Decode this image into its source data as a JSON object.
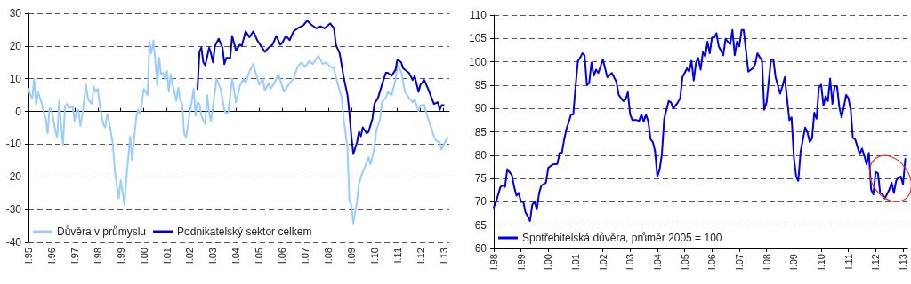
{
  "chart_data": [
    {
      "type": "line",
      "xlim": [
        "1995-01",
        "2013-04"
      ],
      "ylim": [
        -40,
        30
      ],
      "yticks": [
        -40,
        -30,
        -20,
        -10,
        0,
        10,
        20,
        30
      ],
      "xticks": [
        {
          "value": "1995-01",
          "label": "I.95"
        },
        {
          "value": "1996-01",
          "label": "I.96"
        },
        {
          "value": "1997-01",
          "label": "I.97"
        },
        {
          "value": "1998-01",
          "label": "I.98"
        },
        {
          "value": "1999-01",
          "label": "I.99"
        },
        {
          "value": "2000-01",
          "label": "I.00"
        },
        {
          "value": "2001-01",
          "label": "I.01"
        },
        {
          "value": "2002-01",
          "label": "I.02"
        },
        {
          "value": "2003-01",
          "label": "I.03"
        },
        {
          "value": "2004-01",
          "label": "I.04"
        },
        {
          "value": "2005-01",
          "label": "I.05"
        },
        {
          "value": "2006-01",
          "label": "I.06"
        },
        {
          "value": "2007-01",
          "label": "I.07"
        },
        {
          "value": "2008-01",
          "label": "I.08"
        },
        {
          "value": "2009-01",
          "label": "I.09"
        },
        {
          "value": "2010-01",
          "label": "I.10"
        },
        {
          "value": "2011-01",
          "label": "I.11"
        },
        {
          "value": "2012-01",
          "label": "I.12"
        },
        {
          "value": "2013-01",
          "label": "I.13"
        }
      ],
      "grid": "y",
      "legend": "bottom left",
      "line_style": "solid",
      "marker": "none",
      "series": [
        {
          "name": "Důvěra v průmyslu",
          "color": "#99ccff",
          "x": [
            "1995-01",
            "1995-02",
            "1995-03",
            "1995-04",
            "1995-05",
            "1995-06",
            "1995-08",
            "1995-09",
            "1995-10",
            "1995-11",
            "1995-12",
            "1996-01",
            "1996-03",
            "1996-04",
            "1996-05",
            "1996-06",
            "1996-07",
            "1996-08",
            "1996-09",
            "1996-10",
            "1996-12",
            "1997-01",
            "1997-02",
            "1997-03",
            "1997-04",
            "1997-05",
            "1997-07",
            "1997-08",
            "1997-10",
            "1997-11",
            "1997-12",
            "1998-01",
            "1998-02",
            "1998-04",
            "1998-05",
            "1998-06",
            "1998-07",
            "1998-09",
            "1998-10",
            "1998-12",
            "1999-01",
            "1999-02",
            "1999-03",
            "1999-04",
            "1999-05",
            "1999-06",
            "1999-07",
            "1999-09",
            "1999-10",
            "1999-11",
            "1999-12",
            "2000-01",
            "2000-03",
            "2000-04",
            "2000-05",
            "2000-06",
            "2000-07",
            "2000-08",
            "2000-09",
            "2000-10",
            "2000-11",
            "2000-12",
            "2001-01",
            "2001-02",
            "2001-03",
            "2001-04",
            "2001-06",
            "2001-07",
            "2001-08",
            "2001-09",
            "2001-10",
            "2001-11",
            "2002-01",
            "2002-02",
            "2002-03",
            "2002-04",
            "2002-05",
            "2002-06",
            "2002-07",
            "2002-09",
            "2002-10",
            "2002-11",
            "2002-12",
            "2003-02",
            "2003-03",
            "2003-05",
            "2003-07",
            "2003-08",
            "2003-09",
            "2003-11",
            "2004-01",
            "2004-03",
            "2004-05",
            "2004-06",
            "2004-08",
            "2004-10",
            "2004-11",
            "2005-01",
            "2005-03",
            "2005-04",
            "2005-06",
            "2005-07",
            "2005-09",
            "2005-11",
            "2006-01",
            "2006-02",
            "2006-05",
            "2006-07",
            "2006-09",
            "2006-11",
            "2007-01",
            "2007-03",
            "2007-05",
            "2007-08",
            "2007-10",
            "2007-12",
            "2008-02",
            "2008-04",
            "2008-05",
            "2008-08",
            "2008-09",
            "2008-11",
            "2008-12",
            "2009-01",
            "2009-02",
            "2009-04",
            "2009-05",
            "2009-07",
            "2009-08",
            "2009-10",
            "2009-11",
            "2010-01",
            "2010-02",
            "2010-04",
            "2010-05",
            "2010-07",
            "2010-08",
            "2010-10",
            "2010-12",
            "2011-01",
            "2011-03",
            "2011-05",
            "2011-07",
            "2011-09",
            "2011-10",
            "2011-12",
            "2012-01",
            "2012-03",
            "2012-04",
            "2012-06",
            "2012-08",
            "2012-09",
            "2012-11",
            "2012-12",
            "2013-01",
            "2013-03"
          ],
          "values": [
            6.9,
            5,
            4,
            10,
            2,
            6,
            2.3,
            -0.4,
            -2,
            -6.7,
            1,
            0.5,
            -5.8,
            -8,
            3.3,
            -4,
            -10.3,
            1.5,
            2.3,
            1,
            1.5,
            -3,
            0.5,
            0.4,
            -4.4,
            -1.3,
            8.2,
            3.7,
            2.3,
            7.7,
            6,
            6.9,
            2.3,
            -4,
            -4.9,
            -0.8,
            -3,
            -10.3,
            -18.4,
            -26.6,
            -21,
            -24.8,
            -28.4,
            -20.3,
            -13.9,
            -7.6,
            -14.8,
            -2.2,
            0.5,
            -0.8,
            2.3,
            6.9,
            5,
            21.3,
            17.7,
            21.7,
            15.9,
            7.8,
            16.4,
            11.4,
            11.8,
            10,
            12.3,
            6,
            11.4,
            8.2,
            3.3,
            7.3,
            3.3,
            2.3,
            -6.7,
            -8,
            -0.4,
            3.3,
            6.9,
            -1.3,
            2.8,
            2.3,
            -1.3,
            -4,
            5,
            -0.4,
            -3,
            6,
            10,
            6.9,
            0.5,
            -0.8,
            -0.2,
            10,
            2.8,
            7.8,
            10,
            8.7,
            12.3,
            14.5,
            12.3,
            8.2,
            10,
            6.4,
            8.7,
            6.9,
            8.7,
            11.4,
            7.8,
            6,
            8.7,
            10,
            13.6,
            15,
            13.6,
            15.4,
            14.5,
            17,
            14.5,
            15,
            13.6,
            13.2,
            10.5,
            4.2,
            -2.2,
            -11.2,
            -27.5,
            -28.4,
            -34.2,
            -27.5,
            -22,
            -18.4,
            -17.1,
            -13.9,
            -16.2,
            -11.2,
            -5.8,
            -2.2,
            2.8,
            4.2,
            6,
            5,
            9.6,
            14.1,
            12.3,
            6,
            4.2,
            2.8,
            3.7,
            0.1,
            1.9,
            1.9,
            -0.4,
            -4,
            -7.6,
            -8.9,
            -9.4,
            -11.7,
            -10.3,
            -8
          ]
        },
        {
          "name": "Podnikatelský sektor celkem",
          "color": "#0000cc",
          "x": [
            "2002-05",
            "2002-06",
            "2002-07",
            "2002-08",
            "2002-09",
            "2002-11",
            "2002-12",
            "2003-01",
            "2003-02",
            "2003-04",
            "2003-06",
            "2003-07",
            "2003-08",
            "2003-10",
            "2003-11",
            "2004-01",
            "2004-03",
            "2004-04",
            "2004-05",
            "2004-06",
            "2004-08",
            "2004-10",
            "2004-12",
            "2005-02",
            "2005-04",
            "2005-06",
            "2005-08",
            "2005-10",
            "2005-12",
            "2006-01",
            "2006-03",
            "2006-05",
            "2006-07",
            "2006-09",
            "2006-12",
            "2007-02",
            "2007-04",
            "2007-07",
            "2007-09",
            "2007-11",
            "2008-02",
            "2008-04",
            "2008-05",
            "2008-07",
            "2008-09",
            "2008-11",
            "2008-12",
            "2009-01",
            "2009-02",
            "2009-04",
            "2009-05",
            "2009-06",
            "2009-07",
            "2009-09",
            "2009-10",
            "2009-12",
            "2010-01",
            "2010-03",
            "2010-05",
            "2010-07",
            "2010-08",
            "2010-10",
            "2010-12",
            "2011-01",
            "2011-03",
            "2011-04",
            "2011-07",
            "2011-09",
            "2011-10",
            "2011-12",
            "2012-01",
            "2012-03",
            "2012-05",
            "2012-08",
            "2012-10",
            "2012-11",
            "2012-12",
            "2013-01"
          ],
          "values": [
            6.9,
            18.2,
            19.5,
            15,
            14.1,
            19.5,
            17.7,
            15,
            20,
            22.2,
            19.5,
            14.5,
            16.4,
            16.4,
            23.1,
            18.6,
            20.4,
            20,
            22.2,
            24.5,
            22.7,
            24.5,
            21.8,
            20,
            18.2,
            19.5,
            20.4,
            23.1,
            20.4,
            20.9,
            23.1,
            21.8,
            24.5,
            25.4,
            26.3,
            27.8,
            26.6,
            25.4,
            26,
            25.4,
            26.9,
            25.4,
            20.4,
            17.7,
            10.5,
            5,
            -0.4,
            -7.6,
            -13,
            -9.4,
            -6.2,
            -7.6,
            -4.9,
            -6.7,
            -6.2,
            -2.2,
            2.3,
            4.2,
            8.2,
            11.8,
            11.8,
            10.9,
            12.7,
            15.9,
            15,
            13.2,
            11.8,
            9.6,
            10.9,
            6,
            8.2,
            9.6,
            6.9,
            2.3,
            2.8,
            0.5,
            1.9,
            1.9
          ]
        }
      ]
    },
    {
      "type": "line",
      "xlim": [
        "1998-01",
        "2013-03"
      ],
      "ylim": [
        60,
        110
      ],
      "yticks": [
        60,
        65,
        70,
        75,
        80,
        85,
        90,
        95,
        100,
        105,
        110
      ],
      "xticks": [
        {
          "value": "1998-01",
          "label": "I.98"
        },
        {
          "value": "1999-01",
          "label": "I.99"
        },
        {
          "value": "2000-01",
          "label": "I.00"
        },
        {
          "value": "2001-01",
          "label": "I.01"
        },
        {
          "value": "2002-01",
          "label": "I.02"
        },
        {
          "value": "2003-01",
          "label": "I.03"
        },
        {
          "value": "2004-01",
          "label": "I.04"
        },
        {
          "value": "2005-01",
          "label": "I.05"
        },
        {
          "value": "2006-01",
          "label": "I.06"
        },
        {
          "value": "2007-01",
          "label": "I.07"
        },
        {
          "value": "2008-01",
          "label": "I.08"
        },
        {
          "value": "2009-01",
          "label": "I.09"
        },
        {
          "value": "2010-01",
          "label": "I.10"
        },
        {
          "value": "2011-01",
          "label": "I.11"
        },
        {
          "value": "2012-01",
          "label": "I.12"
        },
        {
          "value": "2013-01",
          "label": "I.13"
        }
      ],
      "grid": "y",
      "legend": "bottom left",
      "line_style": "solid",
      "marker": "none",
      "series": [
        {
          "name": "Spotřebitelská důvěra, průměr 2005 = 100",
          "color": "#0000ee",
          "x": [
            "1998-01",
            "1998-02",
            "1998-04",
            "1998-05",
            "1998-06",
            "1998-07",
            "1998-09",
            "1998-10",
            "1998-11",
            "1998-12",
            "1999-01",
            "1999-02",
            "1999-03",
            "1999-04",
            "1999-05",
            "1999-06",
            "1999-07",
            "1999-08",
            "1999-09",
            "1999-10",
            "1999-12",
            "2000-01",
            "2000-03",
            "2000-05",
            "2000-06",
            "2000-07",
            "2000-08",
            "2000-09",
            "2000-11",
            "2000-12",
            "2001-01",
            "2001-02",
            "2001-03",
            "2001-04",
            "2001-05",
            "2001-06",
            "2001-07",
            "2001-08",
            "2001-09",
            "2001-10",
            "2001-11",
            "2002-01",
            "2002-03",
            "2002-05",
            "2002-07",
            "2002-08",
            "2002-10",
            "2002-11",
            "2002-12",
            "2003-01",
            "2003-02",
            "2003-04",
            "2003-05",
            "2003-06",
            "2003-07",
            "2003-08",
            "2003-09",
            "2003-10",
            "2003-11",
            "2003-12",
            "2004-01",
            "2004-02",
            "2004-03",
            "2004-04",
            "2004-05",
            "2004-06",
            "2004-07",
            "2004-08",
            "2004-10",
            "2004-11",
            "2004-12",
            "2005-02",
            "2005-03",
            "2005-04",
            "2005-05",
            "2005-06",
            "2005-07",
            "2005-08",
            "2005-09",
            "2005-10",
            "2005-11",
            "2005-12",
            "2006-01",
            "2006-02",
            "2006-03",
            "2006-04",
            "2006-06",
            "2006-07",
            "2006-09",
            "2006-10",
            "2006-11",
            "2006-12",
            "2007-01",
            "2007-02",
            "2007-03",
            "2007-05",
            "2007-07",
            "2007-08",
            "2007-09",
            "2007-11",
            "2007-12",
            "2008-01",
            "2008-03",
            "2008-04",
            "2008-05",
            "2008-07",
            "2008-08",
            "2008-09",
            "2008-11",
            "2008-12",
            "2009-01",
            "2009-02",
            "2009-03",
            "2009-04",
            "2009-06",
            "2009-07",
            "2009-08",
            "2009-09",
            "2009-10",
            "2009-11",
            "2009-12",
            "2010-01",
            "2010-02",
            "2010-03",
            "2010-04",
            "2010-05",
            "2010-06",
            "2010-07",
            "2010-08",
            "2010-09",
            "2010-10",
            "2010-11",
            "2010-12",
            "2011-01",
            "2011-02",
            "2011-03",
            "2011-04",
            "2011-06",
            "2011-07",
            "2011-08",
            "2011-09",
            "2011-10",
            "2011-11",
            "2011-12",
            "2012-01",
            "2012-02",
            "2012-03",
            "2012-04",
            "2012-05",
            "2012-07",
            "2012-08",
            "2012-09",
            "2012-10",
            "2012-11",
            "2012-12",
            "2013-01",
            "2013-02"
          ],
          "values": [
            68.8,
            70,
            73.2,
            73.5,
            73.2,
            77,
            75.7,
            73.2,
            71.3,
            71.9,
            70,
            70,
            67.8,
            66.9,
            65.9,
            69.4,
            70,
            68.4,
            71.9,
            73.5,
            74.1,
            77.3,
            78,
            78.1,
            80.5,
            80.5,
            83.4,
            85.6,
            88.7,
            88.7,
            94.8,
            100.2,
            100.8,
            101.8,
            101.4,
            95.1,
            95.4,
            99.8,
            97,
            98.3,
            97.6,
            100.5,
            96.7,
            97.6,
            95.7,
            92.9,
            91.6,
            91.9,
            93.5,
            88.7,
            87.5,
            87.5,
            87.3,
            88.7,
            87.2,
            88.7,
            87.2,
            83.4,
            82.8,
            80.8,
            75.4,
            77,
            80.2,
            87.8,
            89.7,
            91.6,
            91.3,
            90,
            91.3,
            92.2,
            96.7,
            98.6,
            97.9,
            100.2,
            96,
            99.8,
            100.8,
            98.3,
            102.1,
            101.1,
            104.3,
            101.8,
            105.2,
            105.2,
            106.1,
            103.3,
            101.4,
            104.9,
            103.7,
            106.8,
            101.4,
            104.3,
            103.3,
            106.8,
            106.8,
            97.9,
            98.6,
            99.5,
            101.8,
            100.2,
            89.7,
            91.3,
            100.5,
            100.5,
            96.7,
            93.2,
            94.8,
            96.7,
            87.5,
            88.1,
            79.5,
            75.4,
            74.5,
            80.8,
            85.9,
            84.9,
            82.8,
            83.6,
            89.1,
            87.8,
            94.5,
            95.1,
            90.6,
            92.6,
            91.6,
            96.4,
            91,
            94.8,
            94.8,
            90.3,
            88.1,
            90.3,
            92.9,
            92.2,
            89.7,
            83.7,
            83.4,
            80.2,
            81.4,
            79.9,
            78,
            80.5,
            72.6,
            71.6,
            76.4,
            76.1,
            71.9,
            71.6,
            70.7,
            72.6,
            74.1,
            71.9,
            74.5,
            75.2,
            75.4,
            73.8,
            79.2
          ]
        }
      ]
    }
  ]
}
